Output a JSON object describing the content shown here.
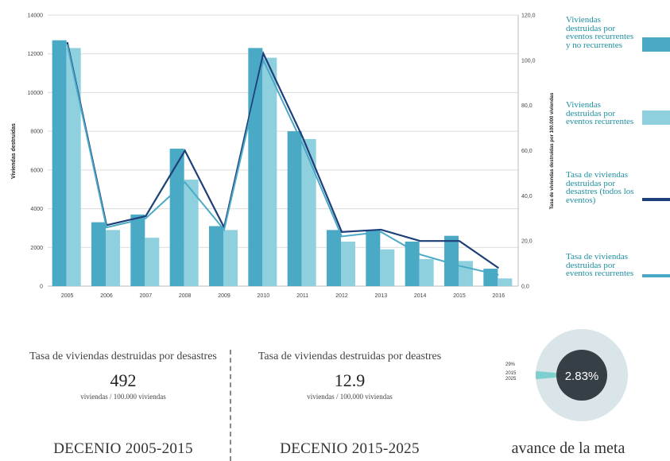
{
  "chart_data": {
    "type": "bar",
    "categories": [
      "2005",
      "2006",
      "2007",
      "2008",
      "2009",
      "2010",
      "2011",
      "2012",
      "2013",
      "2014",
      "2015",
      "2016"
    ],
    "ylabel": "Viviendas destruidas",
    "ylabel_right": "Tasa de viviendas destruidas por 100.000 viviendas",
    "ylim": [
      0,
      14000
    ],
    "ylim_right": [
      0,
      120
    ],
    "y_ticks": [
      "0",
      "2000",
      "4000",
      "6000",
      "8000",
      "10000",
      "12000",
      "14000"
    ],
    "y_ticks_right": [
      "0,0",
      "20,0",
      "40,0",
      "60,0",
      "80,0",
      "100,0",
      "120,0"
    ],
    "grid": true,
    "series": [
      {
        "name": "Viviendas destruidas por eventos recurrentes y no recurrentes",
        "kind": "bar",
        "axis": "left",
        "color": "#4aa9c4",
        "values": [
          12700,
          3300,
          3700,
          7100,
          3100,
          12300,
          8000,
          2900,
          2900,
          2300,
          2600,
          900
        ]
      },
      {
        "name": "Viviendas destruidas por eventos recurrentes",
        "kind": "bar",
        "axis": "left",
        "color": "#8fd0df",
        "values": [
          12300,
          2900,
          2500,
          5500,
          2900,
          11800,
          7600,
          2300,
          1900,
          1400,
          1300,
          400
        ]
      },
      {
        "name": "Tasa de viviendas destruidas por desastres (todos los eventos)",
        "kind": "line",
        "axis": "right",
        "color": "#1d3f7a",
        "values": [
          108,
          27,
          31,
          60,
          26,
          103,
          66,
          24,
          25,
          20,
          20,
          8
        ]
      },
      {
        "name": "Tasa de viviendas destruidas por eventos recurrentes",
        "kind": "line",
        "axis": "right",
        "color": "#4aa9c4",
        "values": [
          107,
          26,
          30,
          46,
          25,
          100,
          63,
          22,
          24,
          14,
          9,
          5
        ]
      }
    ]
  },
  "stats": [
    {
      "title": "Tasa de viviendas destruidas por desastres",
      "value": "492",
      "unit": "viviendas / 100.000 viviendas",
      "decade": "DECENIO 2005-2015"
    },
    {
      "title": "Tasa de viviendas destruidas por deastres",
      "value": "12.9",
      "unit": "viviendas / 100.000 viviendas",
      "decade": "DECENIO 2015-2025"
    }
  ],
  "goal": {
    "percent_label": "2.83%",
    "percent": 2.83,
    "side_label_1": "29%",
    "side_label_2": "2015",
    "side_label_3": "2025",
    "title": "avance de la meta",
    "ring_color": "#d9e5e9",
    "center_color": "#363e46",
    "wedge_color": "#7ecfd0"
  }
}
